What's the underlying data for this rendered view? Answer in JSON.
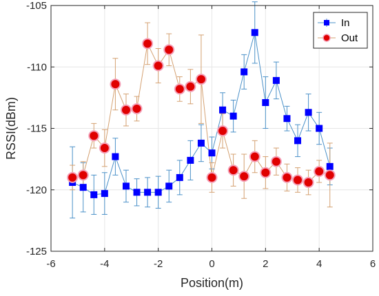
{
  "chart_data": {
    "type": "scatter",
    "xlabel": "Position(m)",
    "ylabel": "RSSI(dBm)",
    "xlim": [
      -6,
      6
    ],
    "ylim": [
      -125,
      -105
    ],
    "xticks": [
      -6,
      -4,
      -2,
      0,
      2,
      4,
      6
    ],
    "yticks": [
      -125,
      -120,
      -115,
      -110,
      -105
    ],
    "xtick_labels": [
      "-6",
      "-4",
      "-2",
      "0",
      "2",
      "4",
      "6"
    ],
    "ytick_labels": [
      "-125",
      "-120",
      "-115",
      "-110",
      "-105"
    ],
    "grid": true,
    "legend_position": "top-right",
    "x": [
      -5.2,
      -4.8,
      -4.4,
      -4.0,
      -3.6,
      -3.2,
      -2.8,
      -2.4,
      -2.0,
      -1.6,
      -1.2,
      -0.8,
      -0.4,
      0.0,
      0.4,
      0.8,
      1.2,
      1.6,
      2.0,
      2.4,
      2.8,
      3.2,
      3.6,
      4.0,
      4.4
    ],
    "series": [
      {
        "name": "In",
        "color": "#0000ff",
        "line_color": "#4a90c8",
        "marker": "square",
        "values": [
          -119.4,
          -119.8,
          -120.4,
          -120.3,
          -117.3,
          -119.7,
          -120.2,
          -120.2,
          -120.2,
          -119.7,
          -119.0,
          -117.6,
          -116.2,
          -117.0,
          -113.5,
          -114.0,
          -110.4,
          -107.2,
          -112.9,
          -111.1,
          -114.2,
          -116.0,
          -113.7,
          -115.0,
          -118.1
        ],
        "error": [
          2.9,
          2.0,
          1.6,
          1.7,
          1.5,
          1.3,
          1.1,
          1.2,
          1.3,
          1.3,
          1.4,
          1.6,
          1.5,
          1.3,
          1.4,
          1.3,
          1.4,
          2.5,
          2.1,
          1.5,
          1.0,
          1.3,
          1.5,
          1.3,
          1.5
        ]
      },
      {
        "name": "Out",
        "color": "#e00000",
        "line_color": "#d4a070",
        "marker": "circle",
        "values": [
          -119.0,
          -118.8,
          -115.6,
          -116.6,
          -111.4,
          -113.5,
          -113.4,
          -108.1,
          -109.9,
          -108.6,
          -111.8,
          -111.6,
          -111.0,
          -119.0,
          -115.2,
          -118.4,
          -118.9,
          -117.3,
          -118.6,
          -117.7,
          -119.0,
          -119.2,
          -119.4,
          -118.5,
          -118.8
        ],
        "error": [
          1.0,
          1.1,
          1.0,
          1.5,
          2.1,
          1.3,
          1.0,
          1.7,
          1.4,
          1.3,
          1.0,
          1.4,
          3.6,
          1.2,
          1.4,
          1.3,
          1.8,
          1.3,
          1.3,
          1.1,
          1.1,
          1.0,
          1.0,
          0.9,
          2.6
        ]
      }
    ]
  }
}
